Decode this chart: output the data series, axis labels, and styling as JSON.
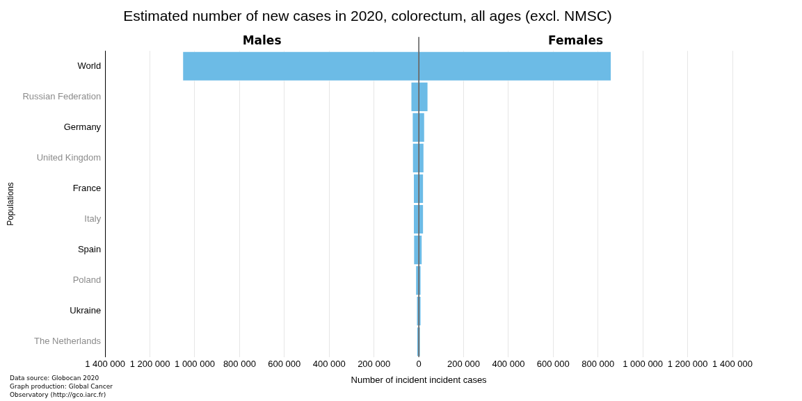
{
  "chart_data": {
    "type": "bar",
    "orientation": "horizontal",
    "stacked": true,
    "title": "Estimated number of new cases in 2020, colorectum, all ages (excl. NMSC)",
    "xlabel": "Number of incident incident cases",
    "ylabel": "Populations",
    "categories": [
      "World",
      "Russian Federation",
      "Germany",
      "United Kingdom",
      "France",
      "Italy",
      "Spain",
      "Poland",
      "Ukraine",
      "The Netherlands"
    ],
    "series": [
      {
        "name": "Males",
        "color": "#6cbbe6",
        "values": [
          -1055000,
          -36000,
          -30000,
          -29000,
          -25000,
          -25000,
          -24000,
          -15000,
          -11000,
          -10000
        ]
      },
      {
        "name": "Females",
        "color": "#6cbbe6",
        "values": [
          860000,
          42000,
          27000,
          24000,
          22000,
          22000,
          16000,
          11000,
          11000,
          8000
        ]
      }
    ],
    "xlim": [
      -1400000,
      1400000
    ],
    "xticks": [
      {
        "value": -1400000,
        "label": "1 400 000"
      },
      {
        "value": -1200000,
        "label": "1 200 000"
      },
      {
        "value": -1000000,
        "label": "1 000 000"
      },
      {
        "value": -800000,
        "label": "800 000"
      },
      {
        "value": -600000,
        "label": "600 000"
      },
      {
        "value": -400000,
        "label": "400 000"
      },
      {
        "value": -200000,
        "label": "200 000"
      },
      0,
      {
        "value": 200000,
        "label": "200 000"
      },
      {
        "value": 400000,
        "label": "400 000"
      },
      {
        "value": 600000,
        "label": "600 000"
      },
      {
        "value": 800000,
        "label": "800 000"
      },
      {
        "value": 1000000,
        "label": "1 000 000"
      },
      {
        "value": 1200000,
        "label": "1 200 000"
      },
      {
        "value": 1400000,
        "label": "1 400 000"
      }
    ],
    "ref_lines": [
      {
        "axis": "x",
        "value": 0,
        "color": "#000000"
      }
    ],
    "grid": "x",
    "legend": false,
    "annotations": [
      "Data source: Globocan 2020",
      "Graph production: Global Cancer Observatory (http://gco.iarc.fr)"
    ]
  }
}
